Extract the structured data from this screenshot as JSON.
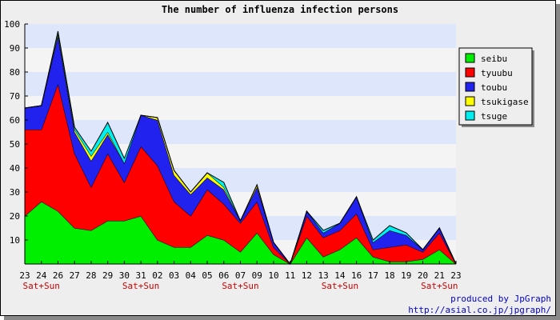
{
  "chart_data": {
    "type": "area",
    "stacked": true,
    "title": "The number of influenza infection persons",
    "ylim": [
      0,
      100
    ],
    "yticks": [
      10,
      20,
      30,
      40,
      50,
      60,
      70,
      80,
      90,
      100
    ],
    "categories": [
      "23",
      "24",
      "26",
      "27",
      "28",
      "29",
      "30",
      "31",
      "02",
      "03",
      "04",
      "05",
      "06",
      "07",
      "09",
      "10",
      "11",
      "12",
      "13",
      "14",
      "16",
      "17",
      "18",
      "19",
      "20",
      "21",
      "23"
    ],
    "weekend_markers": [
      {
        "index": 1,
        "label": "Sat+Sun"
      },
      {
        "index": 7,
        "label": "Sat+Sun"
      },
      {
        "index": 13,
        "label": "Sat+Sun"
      },
      {
        "index": 19,
        "label": "Sat+Sun"
      },
      {
        "index": 25,
        "label": "Sat+Sun"
      }
    ],
    "legend_position": "right",
    "series": [
      {
        "name": "seibu",
        "color": "#00ee00",
        "values": [
          20,
          26,
          22,
          15,
          14,
          18,
          18,
          20,
          10,
          7,
          7,
          12,
          10,
          5,
          13,
          4,
          0,
          11,
          3,
          6,
          11,
          3,
          1,
          1,
          2,
          6,
          0
        ]
      },
      {
        "name": "tyuubu",
        "color": "#ff0000",
        "values": [
          36,
          30,
          53,
          31,
          18,
          28,
          16,
          29,
          31,
          19,
          13,
          19,
          15,
          12,
          13,
          3,
          0,
          9,
          8,
          8,
          10,
          3,
          6,
          7,
          3,
          7,
          0
        ]
      },
      {
        "name": "toubu",
        "color": "#2222ee",
        "values": [
          9,
          10,
          20,
          9,
          11,
          8,
          8,
          13,
          19,
          11,
          9,
          5,
          6,
          1,
          6,
          2,
          0,
          2,
          2,
          3,
          7,
          3,
          7,
          4,
          1,
          2,
          0
        ]
      },
      {
        "name": "tsukigase",
        "color": "#ffff00",
        "values": [
          0,
          0,
          1,
          1,
          2,
          1,
          0,
          0,
          1,
          2,
          1,
          2,
          1,
          0,
          1,
          0,
          0,
          0,
          0,
          0,
          0,
          0,
          0,
          0,
          0,
          0,
          0
        ]
      },
      {
        "name": "tsuge",
        "color": "#00eeee",
        "values": [
          0,
          0,
          1,
          1,
          2,
          4,
          2,
          0,
          0,
          0,
          0,
          0,
          2,
          0,
          0,
          0,
          0,
          0,
          1,
          0,
          0,
          1,
          2,
          1,
          0,
          0,
          0
        ]
      }
    ]
  },
  "credit": {
    "line1": "produced by JpGraph",
    "line2": "http://asial.co.jp/jpgraph/"
  }
}
